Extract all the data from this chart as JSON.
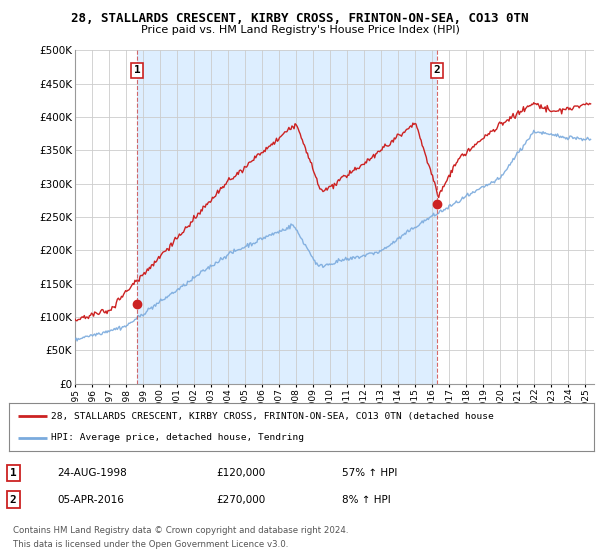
{
  "title": "28, STALLARDS CRESCENT, KIRBY CROSS, FRINTON-ON-SEA, CO13 0TN",
  "subtitle": "Price paid vs. HM Land Registry's House Price Index (HPI)",
  "line1_color": "#cc2222",
  "line2_color": "#7aaadd",
  "shade_color": "#ddeeff",
  "marker_color": "#cc2222",
  "vline_color": "#cc4444",
  "transaction1_year": 1998.65,
  "transaction1_value": 120000,
  "transaction1_date": "24-AUG-1998",
  "transaction1_price": "£120,000",
  "transaction1_hpi": "57% ↑ HPI",
  "transaction2_year": 2016.27,
  "transaction2_value": 270000,
  "transaction2_date": "05-APR-2016",
  "transaction2_price": "£270,000",
  "transaction2_hpi": "8% ↑ HPI",
  "legend_line1": "28, STALLARDS CRESCENT, KIRBY CROSS, FRINTON-ON-SEA, CO13 0TN (detached house",
  "legend_line2": "HPI: Average price, detached house, Tendring",
  "footer1": "Contains HM Land Registry data © Crown copyright and database right 2024.",
  "footer2": "This data is licensed under the Open Government Licence v3.0.",
  "ylim": [
    0,
    500000
  ],
  "xlim_start": 1995.0,
  "xlim_end": 2025.5,
  "background": "#ffffff",
  "grid_color": "#cccccc"
}
